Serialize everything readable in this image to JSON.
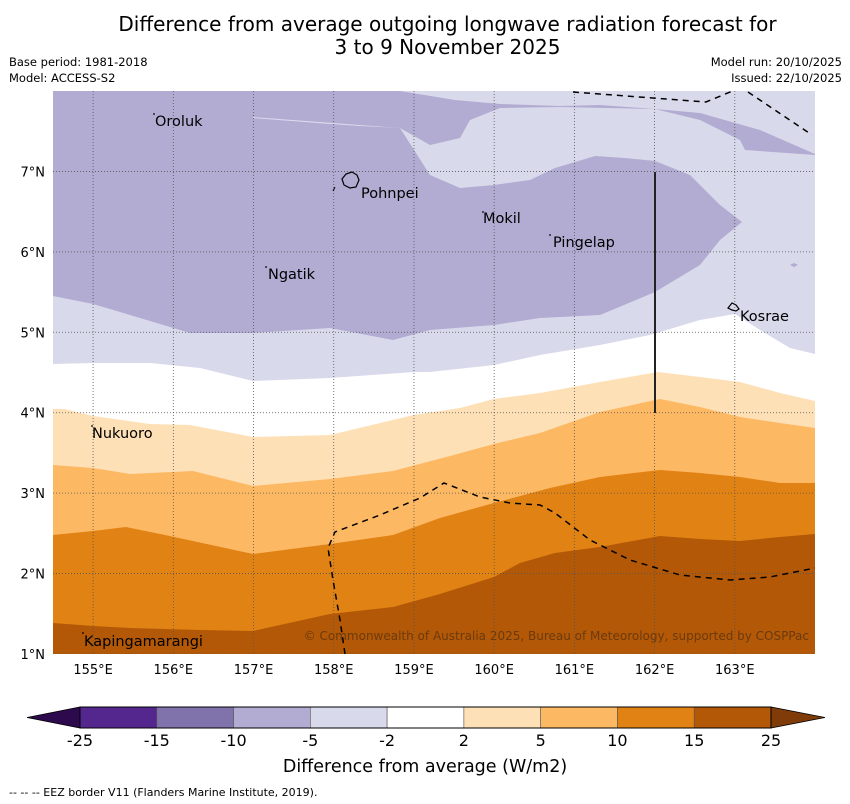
{
  "title_line1": "Difference from average outgoing longwave radiation forecast for",
  "title_line2": "3 to 9 November 2025",
  "meta_left": {
    "base_period": "Base period: 1981-2018",
    "model": "Model: ACCESS-S2"
  },
  "meta_right": {
    "model_run": "Model run: 20/10/2025",
    "issued": "Issued: 22/10/2025"
  },
  "map": {
    "lon_range": [
      154.5,
      164.0
    ],
    "lat_range": [
      1.0,
      8.0
    ],
    "lon_ticks": [
      "155°E",
      "156°E",
      "157°E",
      "158°E",
      "159°E",
      "160°E",
      "161°E",
      "162°E",
      "163°E"
    ],
    "lat_ticks": [
      "7°N",
      "6°N",
      "5°N",
      "4°N",
      "3°N",
      "2°N",
      "1°N"
    ],
    "places": [
      {
        "name": "Oroluk",
        "lon": 155.7,
        "lat": 7.6
      },
      {
        "name": "Pohnpei",
        "lon": 158.3,
        "lat": 6.85
      },
      {
        "name": "Mokil",
        "lon": 159.8,
        "lat": 6.55
      },
      {
        "name": "Pingelap",
        "lon": 160.7,
        "lat": 6.25
      },
      {
        "name": "Ngatik",
        "lon": 157.15,
        "lat": 5.85
      },
      {
        "name": "Kosrae",
        "lon": 163.0,
        "lat": 5.3
      },
      {
        "name": "Nukuoro",
        "lon": 154.97,
        "lat": 3.85
      },
      {
        "name": "Kapingamarangi",
        "lon": 154.85,
        "lat": 1.25
      }
    ],
    "copyright": "© Commonwealth of Australia 2025, Bureau of Meteorology, supported by COSPPac"
  },
  "colorbar": {
    "ticks": [
      "-25",
      "-15",
      "-10",
      "-5",
      "-2",
      "2",
      "5",
      "10",
      "15",
      "25"
    ],
    "colors": {
      "below_-25": "#2d0a4e",
      "-25_-15": "#54278f",
      "-15_-10": "#8073ac",
      "-10_-5": "#b2abd2",
      "-5_-2": "#d8daeb",
      "-2_2": "#ffffff",
      "2_5": "#fee0b6",
      "5_10": "#fdb863",
      "10_15": "#e08214",
      "15_25": "#b35806",
      "above_25": "#7f3b08"
    },
    "label": "Difference from average (W/m2)"
  },
  "footer": "--  --  -- EEZ border V11 (Flanders Marine Institute, 2019)."
}
